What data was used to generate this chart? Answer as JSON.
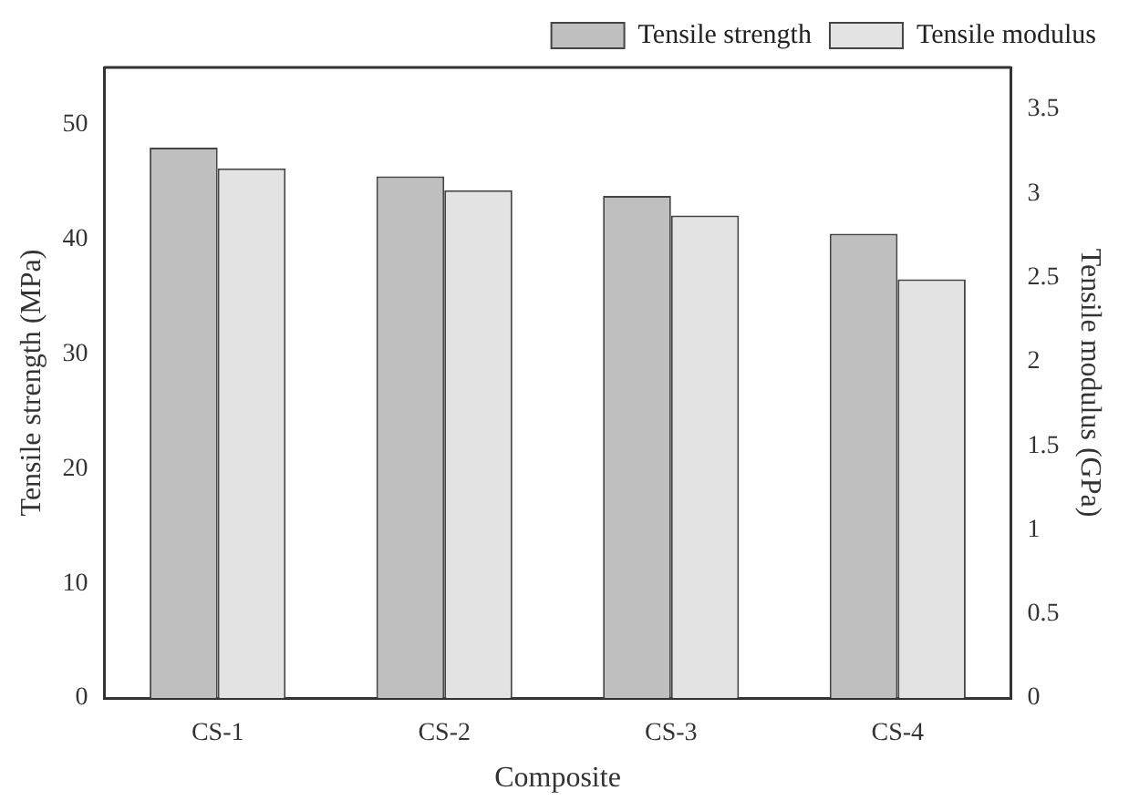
{
  "chart_data": {
    "type": "bar",
    "xlabel": "Composite",
    "ylabel": "Tensile strength (MPa)",
    "y2label": "Tensile modulus (GPa)",
    "categories": [
      "CS-1",
      "CS-2",
      "CS-3",
      "CS-4"
    ],
    "series": [
      {
        "name": "Tensile strength",
        "color": "#bfbfbf",
        "values": [
          48.0,
          45.5,
          43.8,
          40.5
        ]
      },
      {
        "name": "Tensile modulus",
        "color": "#e3e3e3",
        "values": [
          3.15,
          3.02,
          2.87,
          2.49
        ],
        "axis": "y2"
      }
    ],
    "ylim": [
      0,
      55
    ],
    "yticks": [
      0,
      10,
      20,
      30,
      40,
      50
    ],
    "y2lim": [
      0,
      3.75
    ],
    "y2ticks": [
      0,
      0.5,
      1,
      1.5,
      2,
      2.5,
      3,
      3.5
    ],
    "legend": "top right",
    "grid": false
  }
}
